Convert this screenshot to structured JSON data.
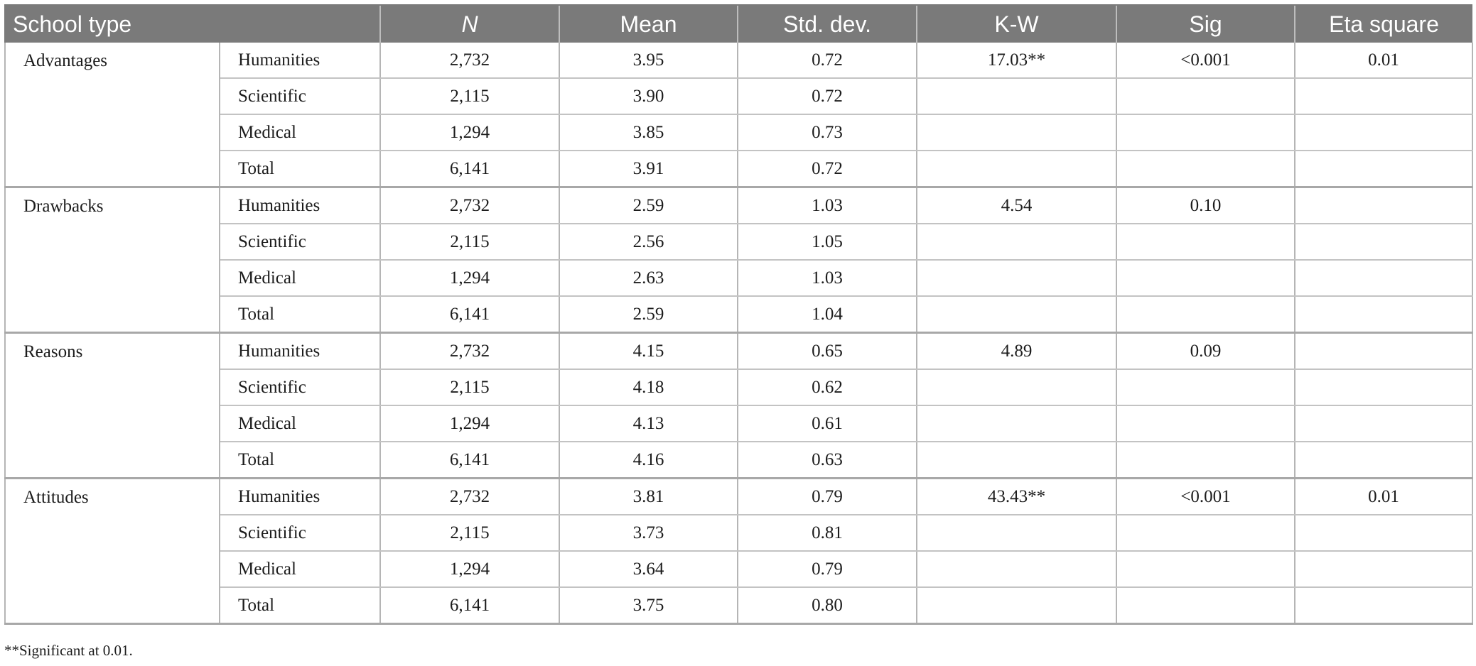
{
  "headers": {
    "school_type": "School type",
    "n": "N",
    "mean": "Mean",
    "std_dev": "Std. dev.",
    "kw": "K-W",
    "sig": "Sig",
    "eta": "Eta square"
  },
  "groups": [
    {
      "scale": "Advantages",
      "kw": "17.03**",
      "sig": "<0.001",
      "eta": "0.01",
      "rows": [
        {
          "school": "Humanities",
          "n": "2,732",
          "mean": "3.95",
          "sd": "0.72"
        },
        {
          "school": "Scientific",
          "n": "2,115",
          "mean": "3.90",
          "sd": "0.72"
        },
        {
          "school": "Medical",
          "n": "1,294",
          "mean": "3.85",
          "sd": "0.73"
        },
        {
          "school": "Total",
          "n": "6,141",
          "mean": "3.91",
          "sd": "0.72"
        }
      ]
    },
    {
      "scale": "Drawbacks",
      "kw": "4.54",
      "sig": "0.10",
      "eta": "",
      "rows": [
        {
          "school": "Humanities",
          "n": "2,732",
          "mean": "2.59",
          "sd": "1.03"
        },
        {
          "school": "Scientific",
          "n": "2,115",
          "mean": "2.56",
          "sd": "1.05"
        },
        {
          "school": "Medical",
          "n": "1,294",
          "mean": "2.63",
          "sd": "1.03"
        },
        {
          "school": "Total",
          "n": "6,141",
          "mean": "2.59",
          "sd": "1.04"
        }
      ]
    },
    {
      "scale": "Reasons",
      "kw": "4.89",
      "sig": "0.09",
      "eta": "",
      "rows": [
        {
          "school": "Humanities",
          "n": "2,732",
          "mean": "4.15",
          "sd": "0.65"
        },
        {
          "school": "Scientific",
          "n": "2,115",
          "mean": "4.18",
          "sd": "0.62"
        },
        {
          "school": "Medical",
          "n": "1,294",
          "mean": "4.13",
          "sd": "0.61"
        },
        {
          "school": "Total",
          "n": "6,141",
          "mean": "4.16",
          "sd": "0.63"
        }
      ]
    },
    {
      "scale": "Attitudes",
      "kw": "43.43**",
      "sig": "<0.001",
      "eta": "0.01",
      "rows": [
        {
          "school": "Humanities",
          "n": "2,732",
          "mean": "3.81",
          "sd": "0.79"
        },
        {
          "school": "Scientific",
          "n": "2,115",
          "mean": "3.73",
          "sd": "0.81"
        },
        {
          "school": "Medical",
          "n": "1,294",
          "mean": "3.64",
          "sd": "0.79"
        },
        {
          "school": "Total",
          "n": "6,141",
          "mean": "3.75",
          "sd": "0.80"
        }
      ]
    }
  ],
  "footnote": "**Significant at 0.01."
}
